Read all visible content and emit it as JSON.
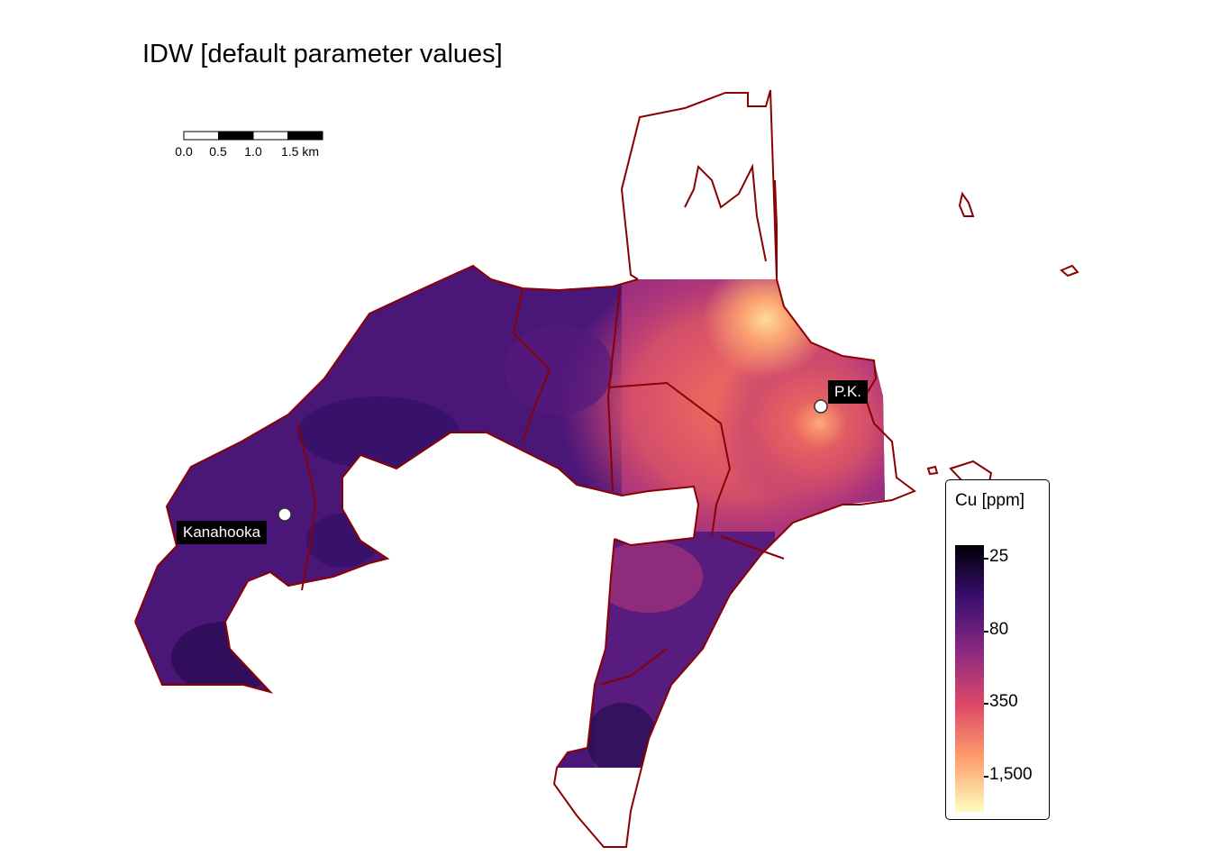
{
  "title": "IDW [default parameter values]",
  "places": [
    {
      "name": "Kanahooka"
    },
    {
      "name": "P.K."
    }
  ],
  "legend": {
    "title": "Cu [ppm]",
    "ticks": [
      "25",
      "80",
      "350",
      "1,500"
    ],
    "colors": [
      "#000004",
      "#3b0f70",
      "#8c2981",
      "#de4968",
      "#fe9f6d",
      "#fcfdbf"
    ]
  },
  "scalebar": {
    "labels": [
      "0.0",
      "0.5",
      "1.0",
      "1.5 km"
    ]
  },
  "colors": {
    "boundary": "#8b0000"
  }
}
